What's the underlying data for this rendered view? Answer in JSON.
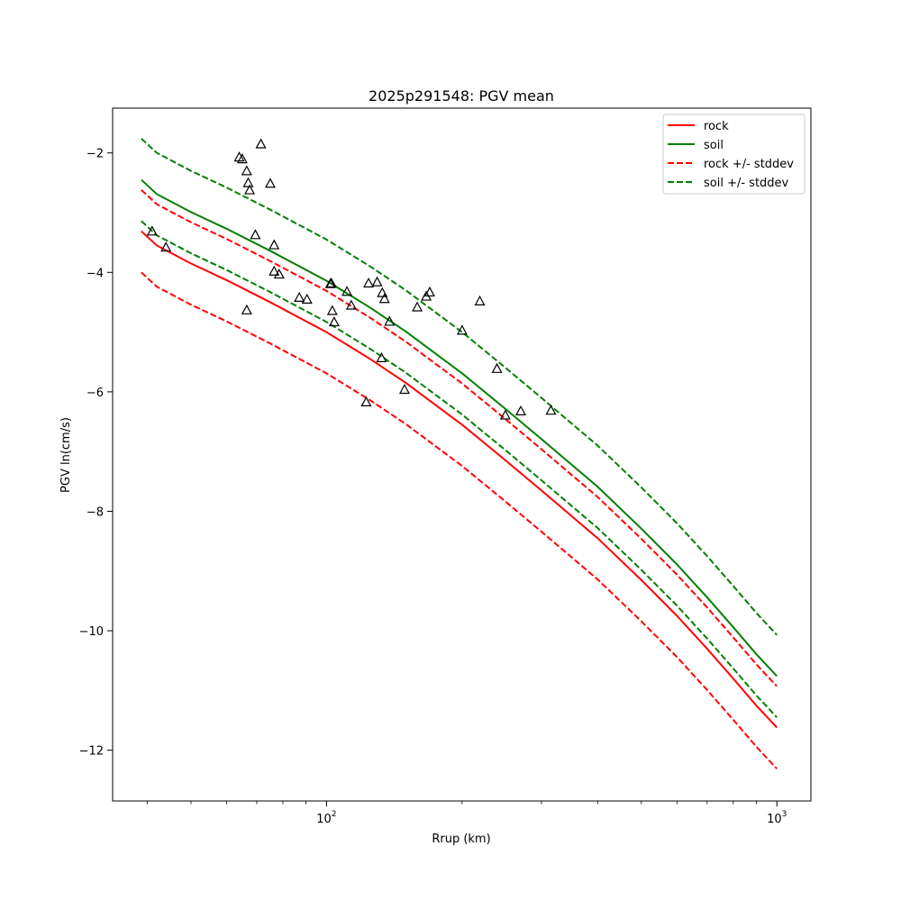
{
  "chart_data": {
    "type": "line",
    "title": "2025p291548: PGV mean",
    "xlabel": "Rrup (km)",
    "ylabel": "PGV ln(cm/s)",
    "xscale": "log",
    "xlim": [
      33.5,
      1190
    ],
    "ylim": [
      -12.85,
      -1.25
    ],
    "xticks": [
      {
        "value": 100,
        "base": "10",
        "exp": "2"
      },
      {
        "value": 1000,
        "base": "10",
        "exp": "3"
      }
    ],
    "yticks": [
      -2,
      -4,
      -6,
      -8,
      -10,
      -12
    ],
    "ytick_labels": [
      "−2",
      "−4",
      "−6",
      "−8",
      "−10",
      "−12"
    ],
    "grid": false,
    "legend": {
      "position": "top-right",
      "entries": [
        {
          "label": "rock",
          "color": "#ff0000",
          "style": "solid"
        },
        {
          "label": "soil",
          "color": "#008000",
          "style": "solid"
        },
        {
          "label": "rock +/- stddev",
          "color": "#ff0000",
          "style": "dashed"
        },
        {
          "label": "soil +/- stddev",
          "color": "#008000",
          "style": "dashed"
        }
      ]
    },
    "series": [
      {
        "name": "rock",
        "color": "#ff0000",
        "style": "solid",
        "x": [
          38.8,
          42,
          50,
          60,
          75,
          100,
          125,
          150,
          200,
          250,
          300,
          400,
          500,
          600,
          700,
          800,
          900,
          1000
        ],
        "y": [
          -3.31,
          -3.55,
          -3.85,
          -4.13,
          -4.5,
          -5.0,
          -5.45,
          -5.85,
          -6.55,
          -7.15,
          -7.65,
          -8.45,
          -9.15,
          -9.75,
          -10.3,
          -10.8,
          -11.25,
          -11.62
        ]
      },
      {
        "name": "soil",
        "color": "#008000",
        "style": "solid",
        "x": [
          38.8,
          42,
          50,
          60,
          75,
          100,
          125,
          150,
          200,
          250,
          300,
          400,
          500,
          600,
          700,
          800,
          900,
          1000
        ],
        "y": [
          -2.45,
          -2.69,
          -2.99,
          -3.27,
          -3.64,
          -4.14,
          -4.59,
          -4.99,
          -5.69,
          -6.29,
          -6.79,
          -7.59,
          -8.29,
          -8.89,
          -9.44,
          -9.94,
          -10.39,
          -10.76
        ]
      },
      {
        "name": "rock +/- stddev",
        "color": "#ff0000",
        "style": "dashed",
        "x": [
          38.8,
          42,
          50,
          60,
          75,
          100,
          125,
          150,
          200,
          250,
          300,
          400,
          500,
          600,
          700,
          800,
          900,
          1000
        ],
        "y": [
          -2.62,
          -2.86,
          -3.16,
          -3.44,
          -3.81,
          -4.31,
          -4.76,
          -5.16,
          -5.86,
          -6.46,
          -6.96,
          -7.76,
          -8.46,
          -9.06,
          -9.61,
          -10.11,
          -10.56,
          -10.93
        ]
      },
      {
        "name": "rock +/- stddev",
        "color": "#ff0000",
        "style": "dashed",
        "x": [
          38.8,
          42,
          50,
          60,
          75,
          100,
          125,
          150,
          200,
          250,
          300,
          400,
          500,
          600,
          700,
          800,
          900,
          1000
        ],
        "y": [
          -4.0,
          -4.24,
          -4.54,
          -4.82,
          -5.19,
          -5.69,
          -6.14,
          -6.54,
          -7.24,
          -7.84,
          -8.34,
          -9.14,
          -9.84,
          -10.44,
          -10.99,
          -11.49,
          -11.94,
          -12.31
        ]
      },
      {
        "name": "soil +/- stddev",
        "color": "#008000",
        "style": "dashed",
        "x": [
          38.8,
          42,
          50,
          60,
          75,
          100,
          125,
          150,
          200,
          250,
          300,
          400,
          500,
          600,
          700,
          800,
          900,
          1000
        ],
        "y": [
          -1.76,
          -2.0,
          -2.3,
          -2.58,
          -2.95,
          -3.45,
          -3.9,
          -4.3,
          -5.0,
          -5.6,
          -6.1,
          -6.9,
          -7.6,
          -8.2,
          -8.75,
          -9.25,
          -9.7,
          -10.07
        ]
      },
      {
        "name": "soil +/- stddev",
        "color": "#008000",
        "style": "dashed",
        "x": [
          38.8,
          42,
          50,
          60,
          75,
          100,
          125,
          150,
          200,
          250,
          300,
          400,
          500,
          600,
          700,
          800,
          900,
          1000
        ],
        "y": [
          -3.14,
          -3.38,
          -3.68,
          -3.96,
          -4.33,
          -4.83,
          -5.28,
          -5.68,
          -6.38,
          -6.98,
          -7.48,
          -8.28,
          -8.98,
          -9.58,
          -10.13,
          -10.63,
          -11.08,
          -11.45
        ]
      }
    ],
    "observations": {
      "marker": "triangle-open",
      "color": "#000000",
      "points": [
        [
          41,
          -3.31
        ],
        [
          44,
          -3.58
        ],
        [
          64,
          -2.07
        ],
        [
          65,
          -2.1
        ],
        [
          66.5,
          -2.3
        ],
        [
          67,
          -2.5
        ],
        [
          67.5,
          -2.62
        ],
        [
          66.5,
          -4.63
        ],
        [
          69.5,
          -3.37
        ],
        [
          71.5,
          -1.85
        ],
        [
          75,
          -2.51
        ],
        [
          76.5,
          -3.54
        ],
        [
          76.5,
          -3.98
        ],
        [
          78.5,
          -4.03
        ],
        [
          87,
          -4.42
        ],
        [
          90.5,
          -4.45
        ],
        [
          102,
          -4.19
        ],
        [
          102.5,
          -4.18
        ],
        [
          103,
          -4.64
        ],
        [
          104,
          -4.83
        ],
        [
          111,
          -4.32
        ],
        [
          113.5,
          -4.55
        ],
        [
          122.5,
          -6.17
        ],
        [
          124,
          -4.18
        ],
        [
          129.5,
          -4.16
        ],
        [
          132.5,
          -5.43
        ],
        [
          133,
          -4.34
        ],
        [
          134.5,
          -4.44
        ],
        [
          138,
          -4.82
        ],
        [
          149,
          -5.96
        ],
        [
          159,
          -4.58
        ],
        [
          166.5,
          -4.4
        ],
        [
          169.5,
          -4.33
        ],
        [
          200,
          -4.97
        ],
        [
          219,
          -4.48
        ],
        [
          239,
          -5.61
        ],
        [
          249.5,
          -6.39
        ],
        [
          270,
          -6.32
        ],
        [
          315,
          -6.31
        ]
      ]
    }
  }
}
